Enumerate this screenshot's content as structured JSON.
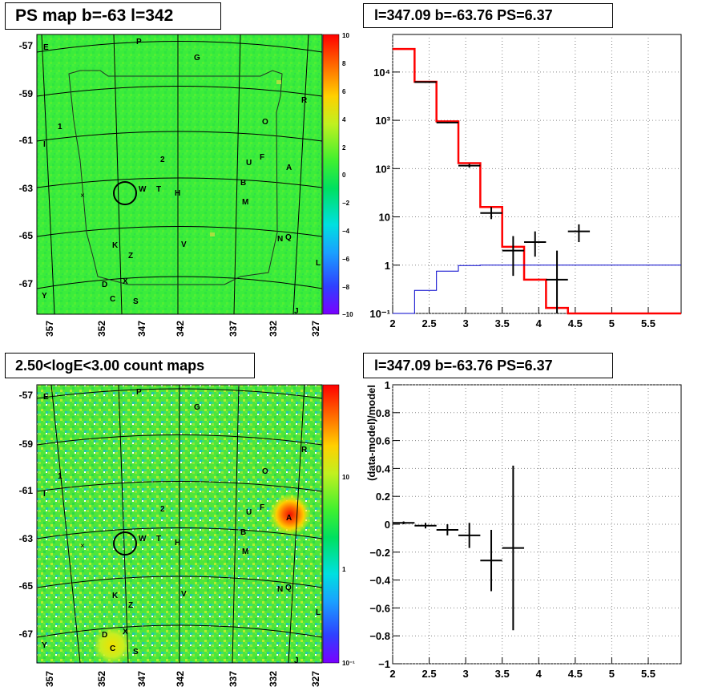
{
  "panels": {
    "ps_map": {
      "title": "PS map b=-63 l=342",
      "lat_labels": [
        "-57",
        "-59",
        "-61",
        "-63",
        "-65",
        "-67"
      ],
      "lon_labels": [
        "357",
        "352",
        "347",
        "342",
        "337",
        "332",
        "327"
      ],
      "colorbar_labels": [
        "10",
        "8",
        "6",
        "4",
        "2",
        "0",
        "−2",
        "−4",
        "−6",
        "−8",
        "−10"
      ]
    },
    "spectrum": {
      "title": "l=347.09 b=-63.76 PS=6.37"
    },
    "count_map": {
      "title": "2.50<logE<3.00 count maps",
      "lat_labels": [
        "-57",
        "-59",
        "-61",
        "-63",
        "-65",
        "-67"
      ],
      "lon_labels": [
        "357",
        "352",
        "347",
        "342",
        "337",
        "332",
        "327"
      ],
      "colorbar_labels": [
        "10",
        "1",
        "10⁻¹"
      ]
    },
    "residual": {
      "title": "l=347.09 b=-63.76 PS=6.37"
    }
  },
  "source_labels": [
    "P",
    "G",
    "E",
    "R",
    "O",
    "1",
    "I",
    "F",
    "U",
    "A",
    "2",
    "W",
    "T",
    "H",
    "B",
    "M",
    "K",
    "V",
    "N",
    "Q",
    "Z",
    "L",
    "D",
    "X",
    "C",
    "S",
    "Y",
    "J"
  ],
  "colors": {
    "map_background": "#33ee33",
    "model_line": "#ff0000",
    "component_line": "#0000cc",
    "data_points": "#000000",
    "hotspot": "#ee2200"
  },
  "chart_data": [
    {
      "type": "line",
      "title": "l=347.09 b=-63.76 PS=6.37",
      "xlabel": "",
      "ylabel": "",
      "xlim": [
        2,
        5.95
      ],
      "ylim": [
        0.1,
        60000
      ],
      "yscale": "log",
      "grid": true,
      "x_ticks": [
        "2",
        "2.5",
        "3",
        "3.5",
        "4",
        "4.5",
        "5",
        "5.5"
      ],
      "y_ticks": [
        "10⁻¹",
        "1",
        "10",
        "10²",
        "10³",
        "10⁴"
      ],
      "series": [
        {
          "style": "step",
          "color": "#ff0000",
          "edges": [
            2.0,
            2.3,
            2.6,
            2.9,
            3.2,
            3.5,
            3.8,
            4.1,
            4.4,
            5.95
          ],
          "values": [
            30000,
            6300,
            950,
            130,
            16,
            2.4,
            0.5,
            0.13,
            0.1
          ]
        },
        {
          "style": "step",
          "color": "#0000cc",
          "edges": [
            2.0,
            2.3,
            2.6,
            2.9,
            3.2,
            5.95
          ],
          "values": [
            0.1,
            0.3,
            0.75,
            0.98,
            1.0
          ]
        },
        {
          "style": "errorbar",
          "color": "#000000",
          "x": [
            2.45,
            2.75,
            3.05,
            3.35,
            3.65,
            3.95,
            4.25,
            4.55
          ],
          "y": [
            6200,
            900,
            115,
            12,
            2,
            3,
            0.5,
            5
          ],
          "xerr": [
            0.15,
            0.15,
            0.15,
            0.15,
            0.15,
            0.15,
            0.15,
            0.15
          ],
          "ylo": [
            6000,
            870,
            105,
            9,
            0.6,
            1.5,
            0.1,
            3
          ],
          "yhi": [
            6400,
            930,
            125,
            16,
            4,
            5,
            2,
            7
          ]
        }
      ]
    },
    {
      "type": "scatter",
      "title": "l=347.09 b=-63.76 PS=6.37",
      "xlabel": "",
      "ylabel": "(data-model)/model",
      "xlim": [
        2,
        5.95
      ],
      "ylim": [
        -1,
        1
      ],
      "grid": true,
      "x_ticks": [
        "2",
        "2.5",
        "3",
        "3.5",
        "4",
        "4.5",
        "5",
        "5.5"
      ],
      "y_ticks": [
        "−1",
        "−0.8",
        "−0.6",
        "−0.4",
        "−0.2",
        "0",
        "0.2",
        "0.4",
        "0.6",
        "0.8",
        "1"
      ],
      "series": [
        {
          "style": "errorbar",
          "color": "#000000",
          "x": [
            2.15,
            2.45,
            2.75,
            3.05,
            3.35,
            3.65
          ],
          "y": [
            0.01,
            -0.01,
            -0.04,
            -0.08,
            -0.26,
            -0.17
          ],
          "xerr": [
            0.15,
            0.15,
            0.15,
            0.15,
            0.15,
            0.15
          ],
          "yerr": [
            0.01,
            0.02,
            0.04,
            0.09,
            0.22,
            0.59
          ]
        }
      ]
    }
  ]
}
